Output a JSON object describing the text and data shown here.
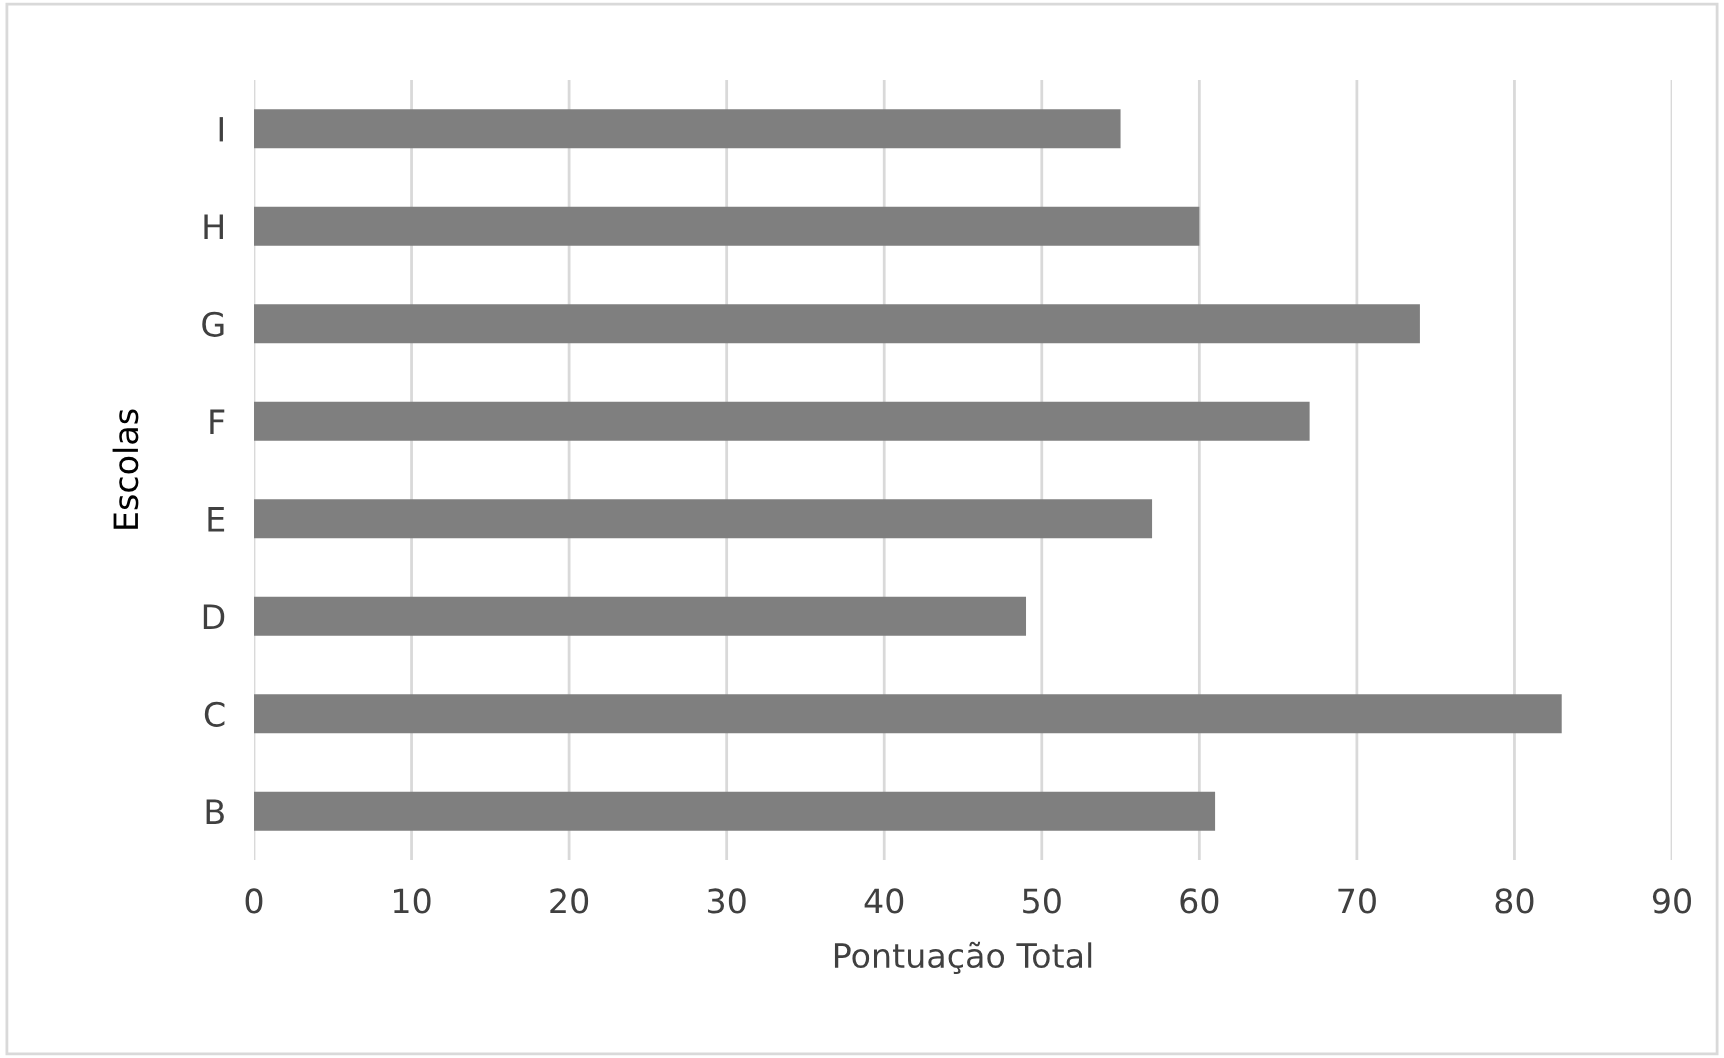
{
  "chart_data": {
    "type": "bar",
    "orientation": "horizontal",
    "xlabel": "Pontuação Total",
    "ylabel": "Escolas",
    "categories": [
      "I",
      "H",
      "G",
      "F",
      "E",
      "D",
      "C",
      "B"
    ],
    "values": [
      55,
      60,
      74,
      67,
      57,
      49,
      83,
      61
    ],
    "color": "#7f7f7f",
    "xlim": [
      0,
      90
    ],
    "xticks": [
      0,
      10,
      20,
      30,
      40,
      50,
      60,
      70,
      80,
      90
    ],
    "grid": "x"
  }
}
